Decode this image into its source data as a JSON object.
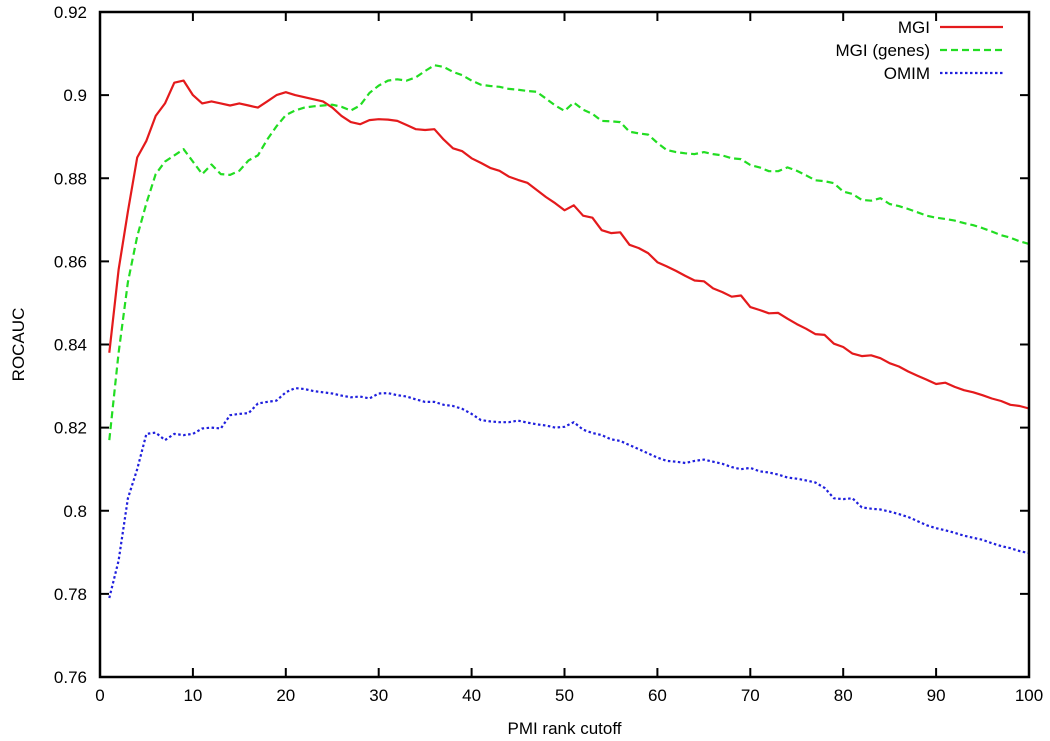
{
  "chart_data": {
    "type": "line",
    "title": "",
    "xlabel": "PMI rank cutoff",
    "ylabel": "ROCAUC",
    "xlim": [
      0,
      100
    ],
    "ylim": [
      0.76,
      0.92
    ],
    "x_ticks": [
      0,
      10,
      20,
      30,
      40,
      50,
      60,
      70,
      80,
      90,
      100
    ],
    "y_ticks": [
      0.76,
      0.78,
      0.8,
      0.82,
      0.84,
      0.86,
      0.88,
      0.9,
      0.92
    ],
    "x_tick_labels": [
      "0",
      "10",
      "20",
      "30",
      "40",
      "50",
      "60",
      "70",
      "80",
      "90",
      "100"
    ],
    "y_tick_labels": [
      "0.76",
      "0.78",
      "0.8",
      "0.82",
      "0.84",
      "0.86",
      "0.88",
      "0.9",
      "0.92"
    ],
    "grid": false,
    "legend_position": "top-right",
    "series": [
      {
        "name": "MGI",
        "color": "#e41a1c",
        "dash": "solid",
        "x": [
          1,
          2,
          3,
          4,
          5,
          6,
          7,
          8,
          9,
          10,
          11,
          12,
          13,
          14,
          15,
          16,
          17,
          18,
          19,
          20,
          21,
          22,
          23,
          24,
          25,
          26,
          27,
          28,
          29,
          30,
          31,
          32,
          33,
          34,
          35,
          36,
          37,
          38,
          39,
          40,
          41,
          42,
          43,
          44,
          45,
          46,
          47,
          48,
          49,
          50,
          51,
          52,
          53,
          54,
          55,
          56,
          57,
          58,
          59,
          60,
          61,
          62,
          63,
          64,
          65,
          66,
          67,
          68,
          69,
          70,
          71,
          72,
          73,
          74,
          75,
          76,
          77,
          78,
          79,
          80,
          81,
          82,
          83,
          84,
          85,
          86,
          87,
          88,
          89,
          90,
          91,
          92,
          93,
          94,
          95,
          96,
          97,
          98,
          99,
          100
        ],
        "y": [
          0.838,
          0.858,
          0.872,
          0.885,
          0.889,
          0.895,
          0.898,
          0.903,
          0.9035,
          0.9,
          0.898,
          0.8985,
          0.898,
          0.8975,
          0.898,
          0.8975,
          0.897,
          0.8985,
          0.9,
          0.9007,
          0.9,
          0.8995,
          0.899,
          0.8985,
          0.897,
          0.895,
          0.8935,
          0.893,
          0.894,
          0.8942,
          0.8941,
          0.8938,
          0.8928,
          0.8918,
          0.8916,
          0.8918,
          0.8893,
          0.8872,
          0.8865,
          0.8848,
          0.8837,
          0.8825,
          0.8818,
          0.8804,
          0.8796,
          0.8789,
          0.8772,
          0.8755,
          0.874,
          0.8723,
          0.8735,
          0.871,
          0.8705,
          0.8675,
          0.8668,
          0.867,
          0.864,
          0.8632,
          0.862,
          0.8598,
          0.8588,
          0.8577,
          0.8565,
          0.8554,
          0.8552,
          0.8535,
          0.8526,
          0.8515,
          0.8518,
          0.849,
          0.8483,
          0.8475,
          0.8476,
          0.8462,
          0.8449,
          0.8438,
          0.8425,
          0.8423,
          0.8402,
          0.8394,
          0.8378,
          0.8372,
          0.8374,
          0.8367,
          0.8355,
          0.8347,
          0.8335,
          0.8325,
          0.8315,
          0.8305,
          0.8308,
          0.8298,
          0.829,
          0.8285,
          0.8278,
          0.827,
          0.8264,
          0.8255,
          0.8252,
          0.8246
        ]
      },
      {
        "name": "MGI (genes)",
        "color": "#22dd22",
        "dash": "dashed",
        "x": [
          1,
          2,
          3,
          4,
          5,
          6,
          7,
          8,
          9,
          10,
          11,
          12,
          13,
          14,
          15,
          16,
          17,
          18,
          19,
          20,
          21,
          22,
          23,
          24,
          25,
          26,
          27,
          28,
          29,
          30,
          31,
          32,
          33,
          34,
          35,
          36,
          37,
          38,
          39,
          40,
          41,
          42,
          43,
          44,
          45,
          46,
          47,
          48,
          49,
          50,
          51,
          52,
          53,
          54,
          55,
          56,
          57,
          58,
          59,
          60,
          61,
          62,
          63,
          64,
          65,
          66,
          67,
          68,
          69,
          70,
          71,
          72,
          73,
          74,
          75,
          76,
          77,
          78,
          79,
          80,
          81,
          82,
          83,
          84,
          85,
          86,
          87,
          88,
          89,
          90,
          91,
          92,
          93,
          94,
          95,
          96,
          97,
          98,
          99,
          100
        ],
        "y": [
          0.817,
          0.838,
          0.855,
          0.866,
          0.874,
          0.881,
          0.884,
          0.8855,
          0.887,
          0.884,
          0.881,
          0.8833,
          0.881,
          0.8808,
          0.8818,
          0.8843,
          0.8855,
          0.8893,
          0.8925,
          0.8952,
          0.8963,
          0.897,
          0.8973,
          0.8975,
          0.8977,
          0.8972,
          0.8963,
          0.8975,
          0.9005,
          0.9023,
          0.9035,
          0.9038,
          0.9035,
          0.9043,
          0.9058,
          0.9072,
          0.9068,
          0.9056,
          0.9048,
          0.9035,
          0.9025,
          0.9022,
          0.902,
          0.9015,
          0.9013,
          0.901,
          0.9008,
          0.8992,
          0.8975,
          0.8962,
          0.8982,
          0.8965,
          0.8955,
          0.8938,
          0.8937,
          0.8935,
          0.8912,
          0.8908,
          0.8905,
          0.8885,
          0.8868,
          0.8863,
          0.886,
          0.8858,
          0.8863,
          0.8858,
          0.8855,
          0.8848,
          0.8846,
          0.8832,
          0.8826,
          0.8817,
          0.8817,
          0.8826,
          0.8818,
          0.8807,
          0.8795,
          0.8793,
          0.8788,
          0.8768,
          0.8762,
          0.8748,
          0.8746,
          0.8752,
          0.8738,
          0.8733,
          0.8726,
          0.8718,
          0.871,
          0.8705,
          0.8702,
          0.8698,
          0.8692,
          0.8687,
          0.868,
          0.8672,
          0.8663,
          0.8657,
          0.8648,
          0.8642
        ]
      },
      {
        "name": "OMIM",
        "color": "#1f1fdd",
        "dash": "dotted",
        "x": [
          1,
          2,
          3,
          4,
          5,
          6,
          7,
          8,
          9,
          10,
          11,
          12,
          13,
          14,
          15,
          16,
          17,
          18,
          19,
          20,
          21,
          22,
          23,
          24,
          25,
          26,
          27,
          28,
          29,
          30,
          31,
          32,
          33,
          34,
          35,
          36,
          37,
          38,
          39,
          40,
          41,
          42,
          43,
          44,
          45,
          46,
          47,
          48,
          49,
          50,
          51,
          52,
          53,
          54,
          55,
          56,
          57,
          58,
          59,
          60,
          61,
          62,
          63,
          64,
          65,
          66,
          67,
          68,
          69,
          70,
          71,
          72,
          73,
          74,
          75,
          76,
          77,
          78,
          79,
          80,
          81,
          82,
          83,
          84,
          85,
          86,
          87,
          88,
          89,
          90,
          91,
          92,
          93,
          94,
          95,
          96,
          97,
          98,
          99,
          100
        ],
        "y": [
          0.779,
          0.788,
          0.803,
          0.81,
          0.8185,
          0.8188,
          0.817,
          0.8185,
          0.8182,
          0.8185,
          0.8198,
          0.82,
          0.8198,
          0.823,
          0.8233,
          0.8235,
          0.8258,
          0.8262,
          0.8265,
          0.8285,
          0.8295,
          0.8293,
          0.8288,
          0.8285,
          0.8282,
          0.8277,
          0.8273,
          0.8275,
          0.827,
          0.8282,
          0.8283,
          0.8278,
          0.8275,
          0.8268,
          0.8262,
          0.8262,
          0.8255,
          0.8252,
          0.8245,
          0.8233,
          0.8218,
          0.8215,
          0.8213,
          0.8213,
          0.8217,
          0.8212,
          0.8208,
          0.8205,
          0.82,
          0.8202,
          0.8213,
          0.8195,
          0.8187,
          0.8182,
          0.8172,
          0.8168,
          0.8158,
          0.8148,
          0.8138,
          0.8128,
          0.812,
          0.8118,
          0.8115,
          0.812,
          0.8123,
          0.8118,
          0.8113,
          0.8105,
          0.81,
          0.8103,
          0.8095,
          0.8092,
          0.8087,
          0.808,
          0.8077,
          0.8073,
          0.8068,
          0.8055,
          0.803,
          0.8028,
          0.803,
          0.8008,
          0.8005,
          0.8003,
          0.7998,
          0.7992,
          0.7985,
          0.7975,
          0.7965,
          0.7958,
          0.7953,
          0.7947,
          0.794,
          0.7935,
          0.793,
          0.7922,
          0.7915,
          0.791,
          0.7903,
          0.7898
        ]
      }
    ]
  }
}
